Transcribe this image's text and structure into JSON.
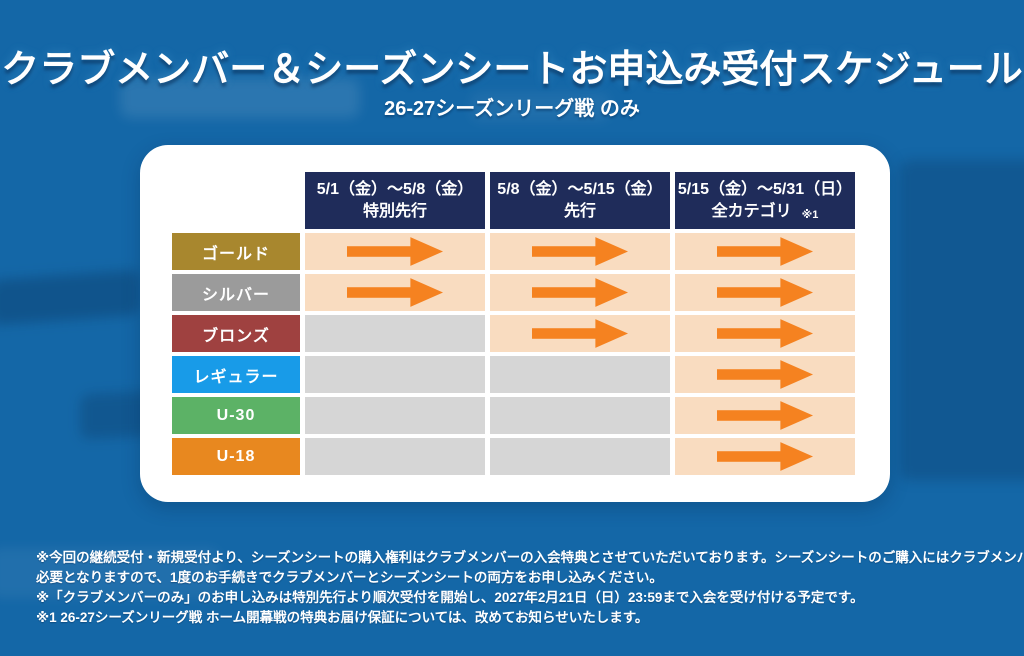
{
  "page": {
    "title": "クラブメンバー＆シーズンシートお申込み受付スケジュール",
    "subtitle": "26-27シーズンリーグ戦 のみ"
  },
  "schedule": {
    "columns": [
      {
        "dates": "5/1（金）〜5/8（金）",
        "label": "特別先行",
        "note": ""
      },
      {
        "dates": "5/8（金）〜5/15（金）",
        "label": "先行",
        "note": ""
      },
      {
        "dates": "5/15（金）〜5/31（日）",
        "label": "全カテゴリ",
        "note": "※1"
      }
    ],
    "rows": [
      {
        "name": "ゴールド",
        "color": "#a8872e",
        "cells": [
          true,
          true,
          true
        ]
      },
      {
        "name": "シルバー",
        "color": "#9b9b9b",
        "cells": [
          true,
          true,
          true
        ]
      },
      {
        "name": "ブロンズ",
        "color": "#9f4140",
        "cells": [
          false,
          true,
          true
        ]
      },
      {
        "name": "レギュラー",
        "color": "#189be8",
        "cells": [
          false,
          false,
          true
        ]
      },
      {
        "name": "U-30",
        "color": "#5cb266",
        "cells": [
          false,
          false,
          true
        ]
      },
      {
        "name": "U-18",
        "color": "#e8881f",
        "cells": [
          false,
          false,
          true
        ]
      }
    ]
  },
  "colors": {
    "background": "#1467a7",
    "card": "#ffffff",
    "header_bg": "#1f2c5a",
    "cell_active": "#f9dcc0",
    "cell_inactive": "#d6d6d6",
    "arrow": "#f58220"
  },
  "notes": [
    "※今回の継続受付・新規受付より、シーズンシートの購入権利はクラブメンバーの入会特典とさせていただいております。シーズンシートのご購入にはクラブメンバーへのご入会が",
    "必要となりますので、1度のお手続きでクラブメンバーとシーズンシートの両方をお申し込みください。",
    "※「クラブメンバーのみ」のお申し込みは特別先行より順次受付を開始し、2027年2月21日（日）23:59まで入会を受け付ける予定です。",
    "※1 26-27シーズンリーグ戦 ホーム開幕戦の特典お届け保証については、改めてお知らせいたします。"
  ]
}
